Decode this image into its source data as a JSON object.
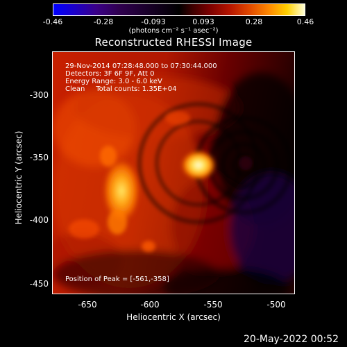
{
  "colorbar": {
    "ticks": [
      "-0.46",
      "-0.28",
      "-0.093",
      "0.093",
      "0.28",
      "0.46"
    ],
    "units": "(photons cm⁻² s⁻¹ asec⁻²)"
  },
  "title": "Reconstructed RHESSI Image",
  "info": {
    "line1": "29-Nov-2014 07:28:48.000 to 07:30:44.000",
    "line2": "Detectors: 3F 6F 9F, Att 0",
    "line3": "Energy Range: 3.0 - 6.0 keV",
    "line4": "Clean     Total counts: 1.35E+04",
    "peak": "Position of Peak = [-561,-358]"
  },
  "axes": {
    "xlabel": "Heliocentric X (arcsec)",
    "ylabel": "Heliocentric Y (arcsec)",
    "xticks": [
      "-650",
      "-600",
      "-550",
      "-500"
    ],
    "yticks": [
      "-300",
      "-350",
      "-400",
      "-450"
    ]
  },
  "timestamp": "20-May-2022 00:52"
}
